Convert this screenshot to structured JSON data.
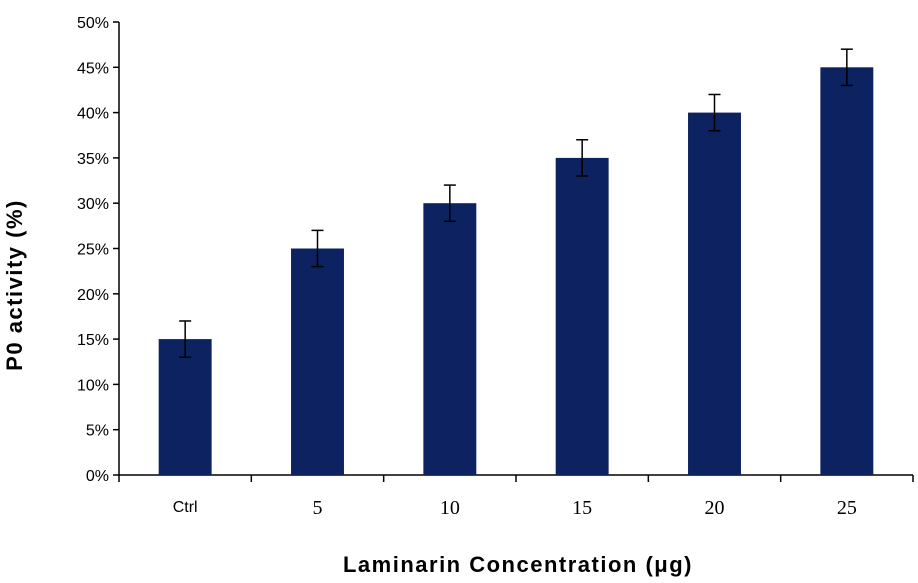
{
  "chart_data": {
    "type": "bar",
    "title": "",
    "xlabel": "Laminarin Concentration (μg)",
    "ylabel": "P0 activity (%)",
    "categories": [
      "Ctrl",
      "5",
      "10",
      "15",
      "20",
      "25"
    ],
    "values": [
      15,
      25,
      30,
      35,
      40,
      45
    ],
    "errors": [
      2,
      2,
      2,
      2,
      2,
      2
    ],
    "ylim": [
      0,
      50
    ],
    "yticks": [
      "0%",
      "5%",
      "10%",
      "15%",
      "20%",
      "25%",
      "30%",
      "35%",
      "40%",
      "45%",
      "50%"
    ],
    "grid": false,
    "legend": "none",
    "bar_color": "#0d2260"
  }
}
